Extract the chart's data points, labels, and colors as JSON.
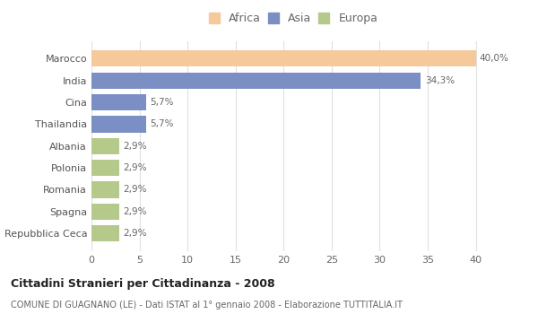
{
  "categories": [
    "Marocco",
    "India",
    "Cina",
    "Thailandia",
    "Albania",
    "Polonia",
    "Romania",
    "Spagna",
    "Repubblica Ceca"
  ],
  "values": [
    40.0,
    34.3,
    5.7,
    5.7,
    2.9,
    2.9,
    2.9,
    2.9,
    2.9
  ],
  "labels": [
    "40,0%",
    "34,3%",
    "5,7%",
    "5,7%",
    "2,9%",
    "2,9%",
    "2,9%",
    "2,9%",
    "2,9%"
  ],
  "colors": [
    "#f5c99a",
    "#7b8fc4",
    "#7b8fc4",
    "#7b8fc4",
    "#b5c98a",
    "#b5c98a",
    "#b5c98a",
    "#b5c98a",
    "#b5c98a"
  ],
  "legend_labels": [
    "Africa",
    "Asia",
    "Europa"
  ],
  "legend_colors": [
    "#f5c99a",
    "#7b8fc4",
    "#b5c98a"
  ],
  "title": "Cittadini Stranieri per Cittadinanza - 2008",
  "subtitle": "COMUNE DI GUAGNANO (LE) - Dati ISTAT al 1° gennaio 2008 - Elaborazione TUTTITALIA.IT",
  "xlim": [
    0,
    42
  ],
  "xticks": [
    0,
    5,
    10,
    15,
    20,
    25,
    30,
    35,
    40
  ],
  "bg_color": "#ffffff",
  "grid_color": "#e0e0e0"
}
